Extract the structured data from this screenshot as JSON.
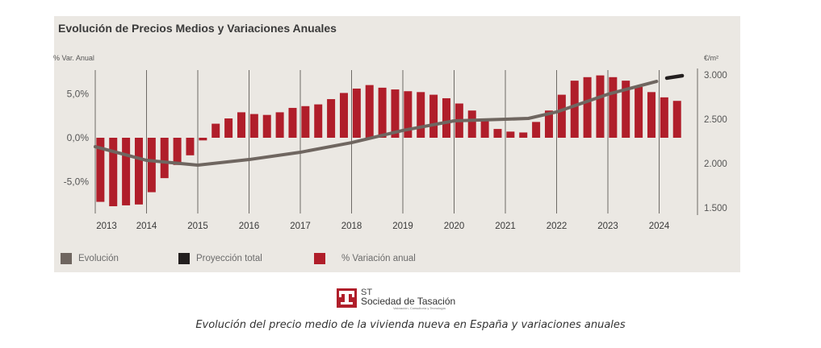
{
  "title": "Evolución de Precios Medios y Variaciones Anuales",
  "caption": "Evolución del precio medio de la vivienda nueva en España y variaciones anuales",
  "logo": {
    "abbr": "ST",
    "name": "Sociedad de Tasación",
    "tagline": "Valoración, Consultoría y Tecnología"
  },
  "colors": {
    "bars": "#b01e2a",
    "evolution": "#6f6660",
    "projection": "#231f1f",
    "panel_bg": "#ebe8e3"
  },
  "chart_data": {
    "type": "bar",
    "title": "Evolución de Precios Medios y Variaciones Anuales",
    "left_axis": {
      "label": "% Var. Anual",
      "ticks": [
        "5,0%",
        "0,0%",
        "-5,0%"
      ],
      "tick_values": [
        5,
        0,
        -5
      ],
      "range": [
        -9,
        8
      ]
    },
    "right_axis": {
      "label": "€/m²",
      "ticks": [
        "3.000",
        "2.500",
        "2.000",
        "1.500"
      ],
      "tick_values": [
        3000,
        2500,
        2000,
        1500
      ],
      "range": [
        1500,
        3000
      ]
    },
    "x_axis": {
      "tick_labels": [
        "2013",
        "2014",
        "2015",
        "2016",
        "2017",
        "2018",
        "2019",
        "2020",
        "2021",
        "2022",
        "2023",
        "2024"
      ],
      "range": [
        2013,
        2024.75
      ]
    },
    "grid": "vertical year lines",
    "legend": {
      "position": "bottom-left",
      "entries": [
        {
          "label": "Evolución",
          "key": "evolution"
        },
        {
          "label": "Proyección total",
          "key": "projection"
        },
        {
          "label": "% Variación anual",
          "key": "bars"
        }
      ]
    },
    "series": [
      {
        "name": "% Variación anual",
        "type": "bar",
        "axis": "left",
        "x": [
          2013.1,
          2013.35,
          2013.6,
          2013.85,
          2014.1,
          2014.35,
          2014.6,
          2014.85,
          2015.1,
          2015.35,
          2015.6,
          2015.85,
          2016.1,
          2016.35,
          2016.6,
          2016.85,
          2017.1,
          2017.35,
          2017.6,
          2017.85,
          2018.1,
          2018.35,
          2018.6,
          2018.85,
          2019.1,
          2019.35,
          2019.6,
          2019.85,
          2020.1,
          2020.35,
          2020.6,
          2020.85,
          2021.1,
          2021.35,
          2021.6,
          2021.85,
          2022.1,
          2022.35,
          2022.6,
          2022.85,
          2023.1,
          2023.35,
          2023.6,
          2023.85,
          2024.1,
          2024.35
        ],
        "values": [
          -7.3,
          -7.8,
          -7.7,
          -7.6,
          -6.2,
          -4.6,
          -3.1,
          -2.0,
          -0.3,
          1.6,
          2.2,
          2.9,
          2.7,
          2.6,
          2.9,
          3.4,
          3.6,
          3.8,
          4.4,
          5.1,
          5.6,
          6.0,
          5.7,
          5.5,
          5.3,
          5.2,
          4.9,
          4.5,
          3.9,
          3.1,
          2.1,
          1.0,
          0.7,
          0.6,
          1.8,
          3.1,
          4.9,
          6.5,
          6.9,
          7.1,
          6.9,
          6.5,
          5.8,
          5.2,
          4.6,
          4.2
        ]
      },
      {
        "name": "Evolución",
        "type": "line",
        "axis": "right",
        "x": [
          2013.0,
          2014.0,
          2015.0,
          2016.0,
          2017.0,
          2018.0,
          2019.0,
          2020.0,
          2021.0,
          2021.45,
          2022.0,
          2023.0,
          2023.95
        ],
        "values": [
          2190,
          2036,
          1982,
          2045,
          2127,
          2236,
          2373,
          2482,
          2500,
          2509,
          2582,
          2782,
          2927
        ]
      },
      {
        "name": "Proyección total",
        "type": "line",
        "axis": "right",
        "x": [
          2024.15,
          2024.45
        ],
        "values": [
          2964,
          2991
        ]
      }
    ]
  }
}
